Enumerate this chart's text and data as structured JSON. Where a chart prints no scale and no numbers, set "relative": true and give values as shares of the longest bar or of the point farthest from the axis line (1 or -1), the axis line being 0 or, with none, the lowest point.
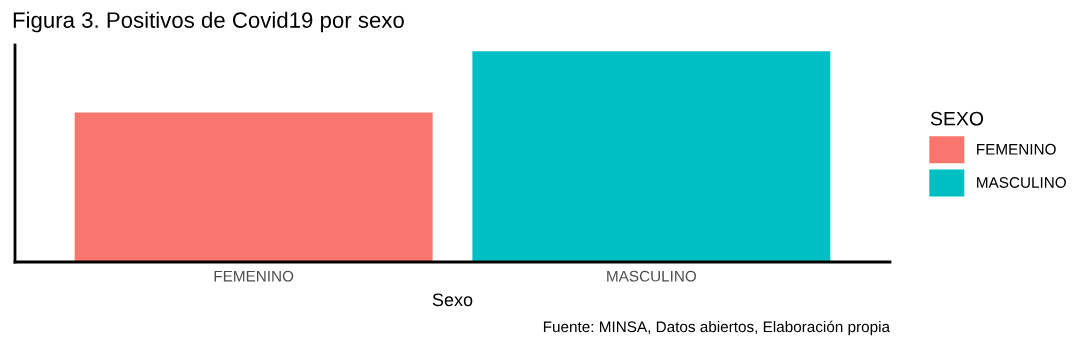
{
  "chart_data": {
    "type": "bar",
    "title": "Figura 3. Positivos de Covid19 por sexo",
    "xlabel": "Sexo",
    "legend_title": "SEXO",
    "categories": [
      "FEMENINO",
      "MASCULINO"
    ],
    "series": [
      {
        "name": "FEMENINO",
        "color": "#f8766d",
        "values": [
          0.71,
          null
        ]
      },
      {
        "name": "MASCULINO",
        "color": "#00bfc4",
        "values": [
          null,
          1
        ]
      }
    ],
    "relative": true,
    "legend": "right",
    "grid": false,
    "annotations": [
      "Fuente: MINSA, Datos abiertos, Elaboración propia"
    ]
  }
}
